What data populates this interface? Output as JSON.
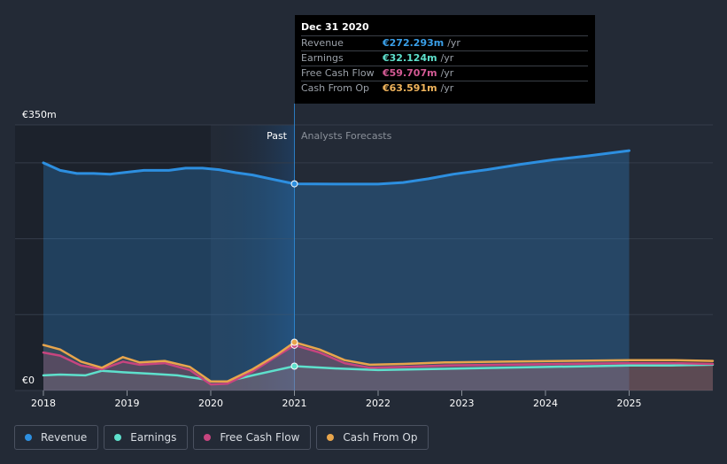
{
  "chart_data": {
    "type": "area",
    "y_axis": {
      "top_label": "€350m",
      "bottom_label": "€0",
      "ylim": [
        0,
        350
      ]
    },
    "x_ticks": [
      "2018",
      "2019",
      "2020",
      "2021",
      "2022",
      "2023",
      "2024",
      "2025"
    ],
    "regions": {
      "past_label": "Past",
      "forecast_label": "Analysts Forecasts"
    },
    "series": [
      {
        "name": "Revenue",
        "color": "#2d8fe0",
        "points": [
          [
            2018.0,
            300
          ],
          [
            2018.2,
            290
          ],
          [
            2018.4,
            286
          ],
          [
            2018.6,
            286
          ],
          [
            2018.8,
            285
          ],
          [
            2018.95,
            287
          ],
          [
            2019.2,
            290
          ],
          [
            2019.5,
            290
          ],
          [
            2019.7,
            293
          ],
          [
            2019.9,
            293
          ],
          [
            2020.1,
            291
          ],
          [
            2020.3,
            287
          ],
          [
            2020.5,
            284
          ],
          [
            2020.75,
            278
          ],
          [
            2021.0,
            272.3
          ],
          [
            2021.5,
            272
          ],
          [
            2022.0,
            272
          ],
          [
            2022.3,
            274
          ],
          [
            2022.6,
            279
          ],
          [
            2022.9,
            285
          ],
          [
            2023.3,
            291
          ],
          [
            2023.7,
            298
          ],
          [
            2024.1,
            304
          ],
          [
            2024.5,
            309
          ],
          [
            2025.0,
            316
          ]
        ]
      },
      {
        "name": "Earnings",
        "color": "#5ee0cc",
        "points": [
          [
            2018.0,
            20
          ],
          [
            2018.2,
            21
          ],
          [
            2018.5,
            20
          ],
          [
            2018.7,
            26
          ],
          [
            2018.95,
            24
          ],
          [
            2019.3,
            22
          ],
          [
            2019.6,
            20
          ],
          [
            2019.9,
            15
          ],
          [
            2020.0,
            12
          ],
          [
            2020.2,
            12
          ],
          [
            2020.5,
            20
          ],
          [
            2020.75,
            26
          ],
          [
            2021.0,
            32.1
          ],
          [
            2021.5,
            29
          ],
          [
            2022.0,
            27
          ],
          [
            2022.5,
            28
          ],
          [
            2023.0,
            29
          ],
          [
            2023.5,
            30
          ],
          [
            2024.0,
            31
          ],
          [
            2024.5,
            32
          ],
          [
            2025.0,
            33
          ],
          [
            2025.5,
            33
          ],
          [
            2026.0,
            34
          ]
        ]
      },
      {
        "name": "Free Cash Flow",
        "color": "#c7457f",
        "points": [
          [
            2018.0,
            50
          ],
          [
            2018.2,
            46
          ],
          [
            2018.45,
            33
          ],
          [
            2018.7,
            28
          ],
          [
            2018.95,
            38
          ],
          [
            2019.15,
            34
          ],
          [
            2019.45,
            36
          ],
          [
            2019.75,
            27
          ],
          [
            2020.0,
            8
          ],
          [
            2020.2,
            9
          ],
          [
            2020.5,
            25
          ],
          [
            2020.8,
            46
          ],
          [
            2021.0,
            59.7
          ],
          [
            2021.3,
            50
          ],
          [
            2021.6,
            36
          ],
          [
            2021.9,
            30
          ],
          [
            2022.3,
            31
          ],
          [
            2022.8,
            33
          ],
          [
            2023.5,
            34
          ],
          [
            2024.2,
            35
          ],
          [
            2025.0,
            36
          ],
          [
            2025.5,
            36
          ],
          [
            2026.0,
            35
          ]
        ]
      },
      {
        "name": "Cash From Op",
        "color": "#e8a54c",
        "points": [
          [
            2018.0,
            60
          ],
          [
            2018.2,
            54
          ],
          [
            2018.45,
            38
          ],
          [
            2018.7,
            30
          ],
          [
            2018.95,
            44
          ],
          [
            2019.15,
            37
          ],
          [
            2019.45,
            39
          ],
          [
            2019.75,
            31
          ],
          [
            2020.0,
            12
          ],
          [
            2020.2,
            12
          ],
          [
            2020.5,
            28
          ],
          [
            2020.8,
            48
          ],
          [
            2021.0,
            63.6
          ],
          [
            2021.3,
            54
          ],
          [
            2021.6,
            40
          ],
          [
            2021.9,
            34
          ],
          [
            2022.3,
            35
          ],
          [
            2022.8,
            37
          ],
          [
            2023.5,
            38
          ],
          [
            2024.2,
            39
          ],
          [
            2025.0,
            40
          ],
          [
            2025.5,
            40
          ],
          [
            2026.0,
            39
          ]
        ]
      }
    ],
    "highlight_x": 2021.0
  },
  "tooltip": {
    "date": "Dec 31 2020",
    "rows": [
      {
        "label": "Revenue",
        "value": "€272.293m",
        "unit": "/yr",
        "color": "#3a9fe8"
      },
      {
        "label": "Earnings",
        "value": "€32.124m",
        "unit": "/yr",
        "color": "#5ee0cc"
      },
      {
        "label": "Free Cash Flow",
        "value": "€59.707m",
        "unit": "/yr",
        "color": "#d45a94"
      },
      {
        "label": "Cash From Op",
        "value": "€63.591m",
        "unit": "/yr",
        "color": "#f0b45c"
      }
    ]
  },
  "legend": [
    {
      "label": "Revenue",
      "color": "#2d8fe0"
    },
    {
      "label": "Earnings",
      "color": "#5ee0cc"
    },
    {
      "label": "Free Cash Flow",
      "color": "#c7457f"
    },
    {
      "label": "Cash From Op",
      "color": "#e8a54c"
    }
  ]
}
